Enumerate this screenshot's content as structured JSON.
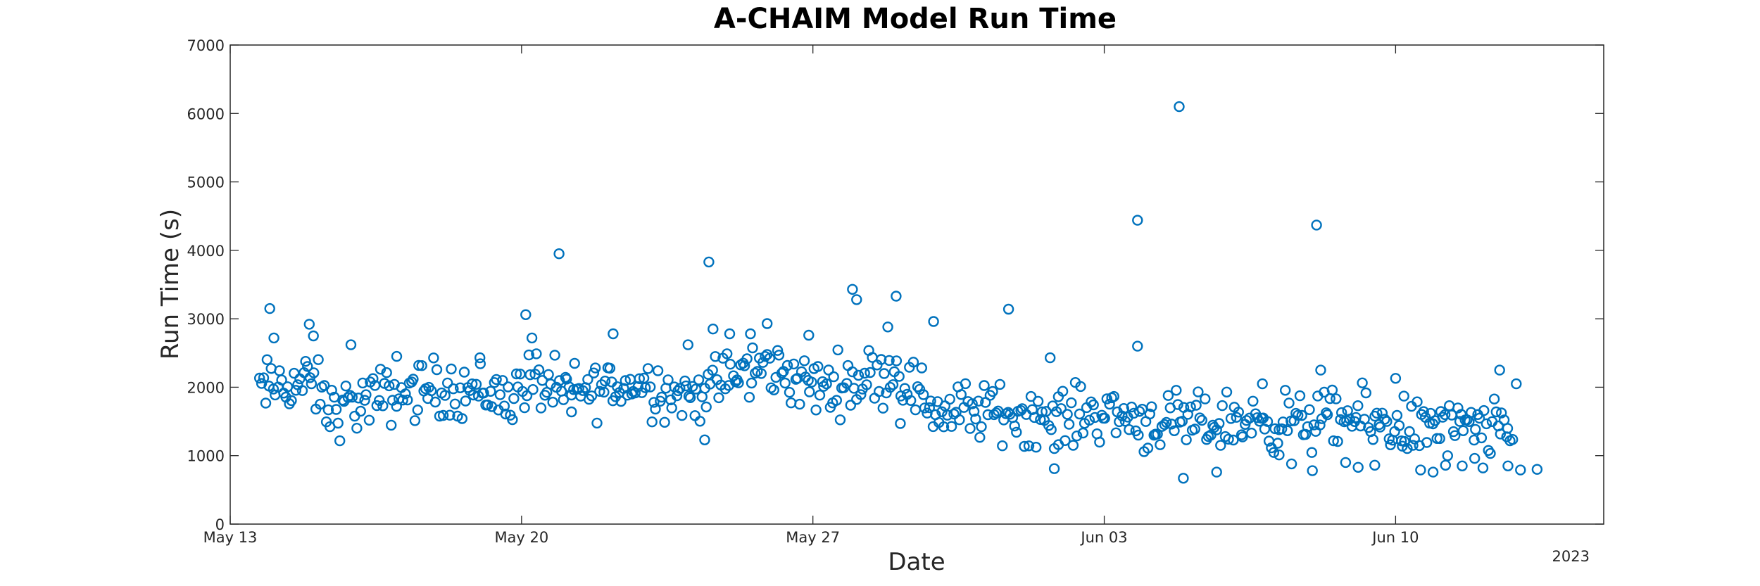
{
  "chart_data": {
    "type": "scatter",
    "title": "A-CHAIM Model Run Time",
    "xlabel": "Date",
    "ylabel": "Run Time (s)",
    "x_year_label": "2023",
    "x_range_days": [
      0,
      33
    ],
    "x_ticks": [
      {
        "day": 0,
        "label": "May 13"
      },
      {
        "day": 7,
        "label": "May 20"
      },
      {
        "day": 14,
        "label": "May 27"
      },
      {
        "day": 21,
        "label": "Jun 03"
      },
      {
        "day": 28,
        "label": "Jun 10"
      }
    ],
    "ylim": [
      0,
      7000
    ],
    "y_ticks": [
      0,
      1000,
      2000,
      3000,
      4000,
      5000,
      6000,
      7000
    ],
    "grid": false,
    "marker": "circle-open",
    "color": "#0072bd",
    "baseline": [
      [
        0.7,
        1950
      ],
      [
        1.3,
        2050
      ],
      [
        2.0,
        2050
      ],
      [
        2.4,
        1650
      ],
      [
        3.0,
        1750
      ],
      [
        4.0,
        1900
      ],
      [
        5.0,
        2000
      ],
      [
        6.0,
        1950
      ],
      [
        6.8,
        1850
      ],
      [
        7.2,
        2150
      ],
      [
        8.0,
        1900
      ],
      [
        9.0,
        2000
      ],
      [
        10.0,
        2050
      ],
      [
        11.0,
        1850
      ],
      [
        12.0,
        2150
      ],
      [
        13.0,
        2300
      ],
      [
        14.0,
        2000
      ],
      [
        15.0,
        2100
      ],
      [
        16.0,
        2250
      ],
      [
        17.0,
        1650
      ],
      [
        18.0,
        1650
      ],
      [
        19.0,
        1600
      ],
      [
        20.0,
        1550
      ],
      [
        21.0,
        1650
      ],
      [
        22.0,
        1500
      ],
      [
        23.0,
        1450
      ],
      [
        24.0,
        1500
      ],
      [
        25.0,
        1500
      ],
      [
        26.0,
        1500
      ],
      [
        27.0,
        1550
      ],
      [
        28.0,
        1400
      ],
      [
        29.0,
        1400
      ],
      [
        30.0,
        1350
      ],
      [
        30.8,
        1350
      ]
    ],
    "outliers": [
      [
        0.95,
        3150
      ],
      [
        1.05,
        2720
      ],
      [
        1.9,
        2920
      ],
      [
        2.0,
        2750
      ],
      [
        2.9,
        2620
      ],
      [
        4.0,
        2450
      ],
      [
        6.0,
        2430
      ],
      [
        7.1,
        3060
      ],
      [
        7.25,
        2720
      ],
      [
        7.9,
        3950
      ],
      [
        8.2,
        1640
      ],
      [
        9.2,
        2780
      ],
      [
        11.0,
        2620
      ],
      [
        11.4,
        1230
      ],
      [
        11.5,
        3830
      ],
      [
        11.6,
        2850
      ],
      [
        12.0,
        2780
      ],
      [
        12.5,
        2780
      ],
      [
        12.9,
        2930
      ],
      [
        13.9,
        2760
      ],
      [
        14.95,
        3430
      ],
      [
        15.05,
        3280
      ],
      [
        15.8,
        2880
      ],
      [
        16.0,
        3330
      ],
      [
        16.1,
        1470
      ],
      [
        16.9,
        2960
      ],
      [
        18.7,
        3140
      ],
      [
        19.7,
        2430
      ],
      [
        19.8,
        810
      ],
      [
        19.9,
        1160
      ],
      [
        21.8,
        4440
      ],
      [
        21.8,
        2600
      ],
      [
        22.8,
        6100
      ],
      [
        22.9,
        670
      ],
      [
        23.7,
        760
      ],
      [
        24.8,
        2050
      ],
      [
        25.2,
        1010
      ],
      [
        25.5,
        880
      ],
      [
        26.0,
        780
      ],
      [
        26.1,
        4370
      ],
      [
        26.2,
        2250
      ],
      [
        26.8,
        900
      ],
      [
        27.1,
        830
      ],
      [
        27.5,
        860
      ],
      [
        28.0,
        2130
      ],
      [
        28.2,
        1870
      ],
      [
        28.6,
        790
      ],
      [
        28.9,
        760
      ],
      [
        29.2,
        860
      ],
      [
        29.6,
        850
      ],
      [
        29.9,
        960
      ],
      [
        30.1,
        820
      ],
      [
        30.5,
        2250
      ],
      [
        30.7,
        850
      ],
      [
        30.9,
        2050
      ],
      [
        31.0,
        790
      ],
      [
        31.4,
        800
      ]
    ]
  }
}
